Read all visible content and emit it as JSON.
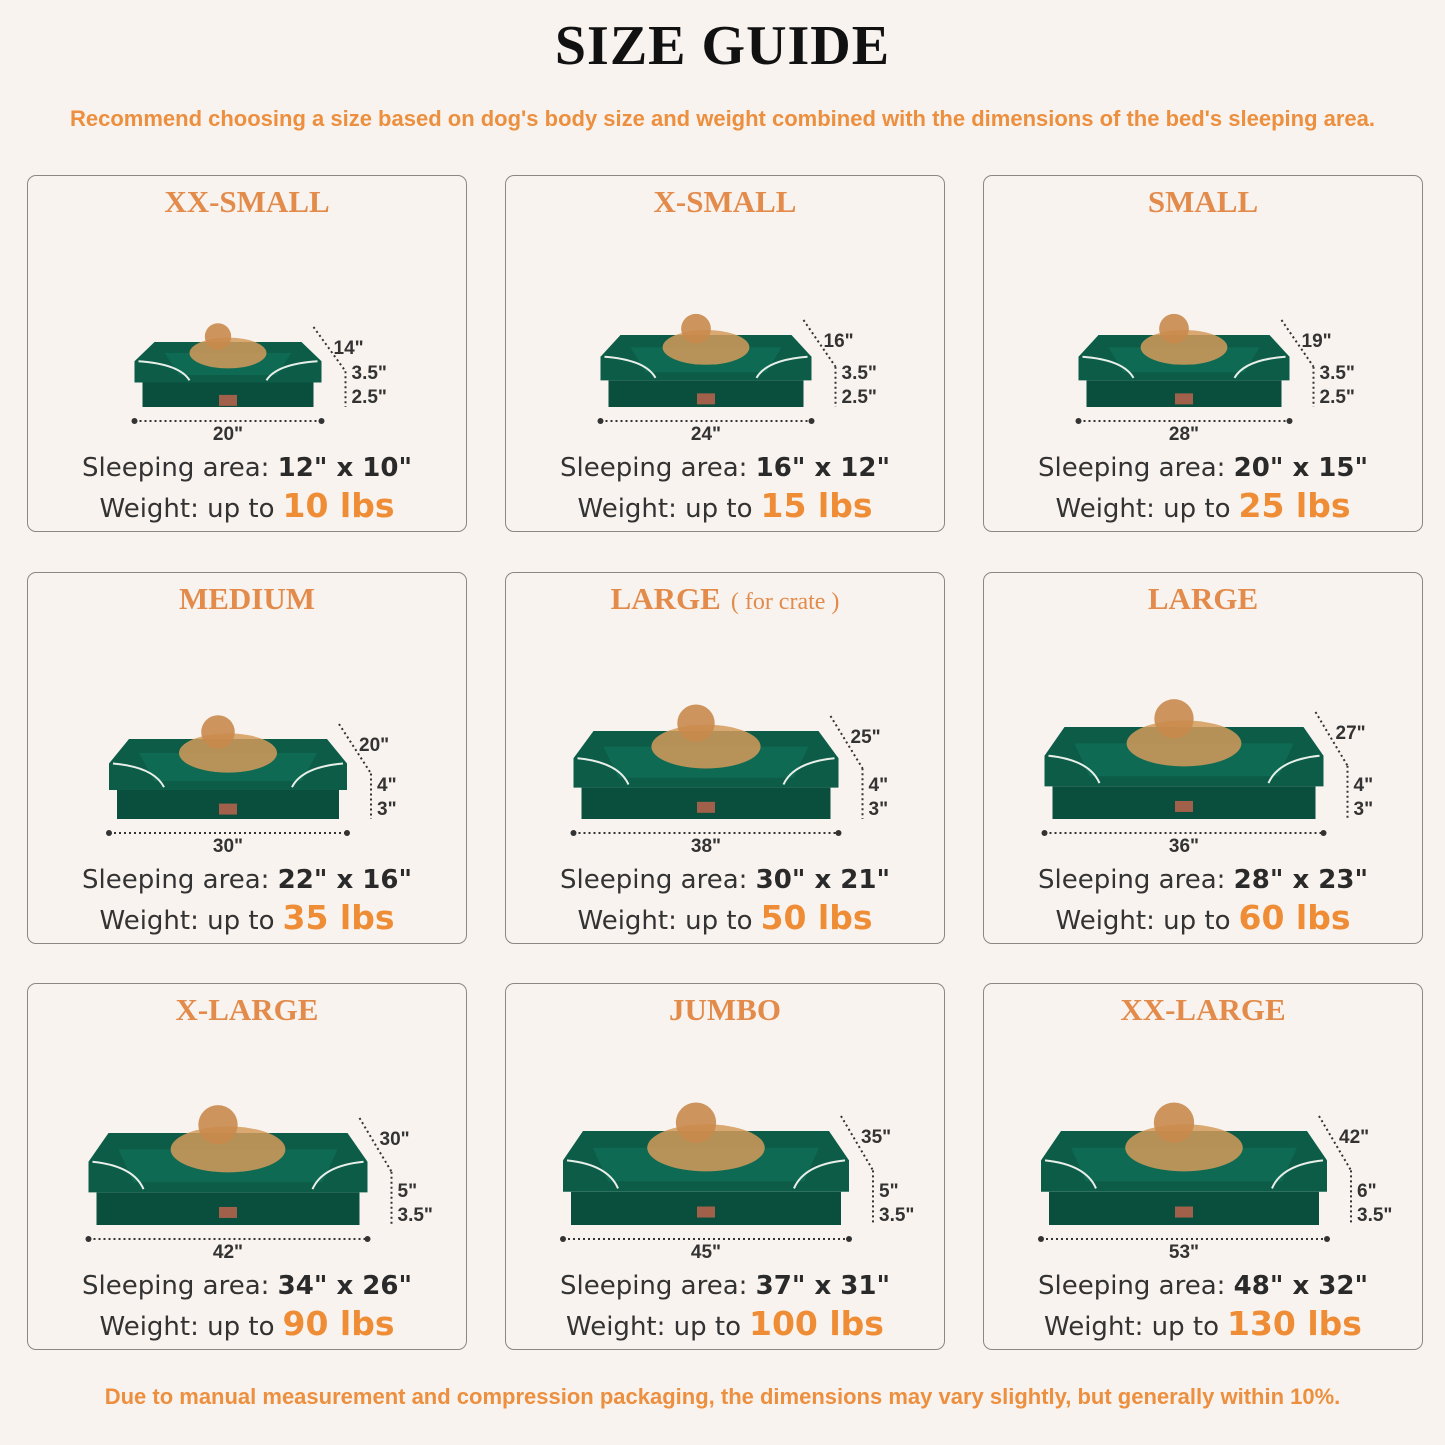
{
  "header": {
    "title": "SIZE GUIDE",
    "subtitle": "Recommend choosing a size based on dog's body size and weight combined with the dimensions of the bed's sleeping area."
  },
  "footer": "Due to manual measurement and compression packaging, the dimensions may vary slightly, but generally within 10%.",
  "colors": {
    "accent": "#ec8f3e",
    "title_orange": "#e28b4b",
    "bed_green": "#0b5a46",
    "background": "#f9f3ef"
  },
  "labels": {
    "sleeping_area": "Sleeping area:",
    "weight": "Weight: up to"
  },
  "sizes": [
    {
      "name": "XX-SMALL",
      "note": "",
      "animal": "cat",
      "depth": "14\"",
      "bolster": "3.5\"",
      "base": "2.5\"",
      "width": "20\"",
      "sleeping_area": "12\" x 10\"",
      "weight": "10 lbs"
    },
    {
      "name": "X-SMALL",
      "note": "",
      "animal": "dog",
      "depth": "16\"",
      "bolster": "3.5\"",
      "base": "2.5\"",
      "width": "24\"",
      "sleeping_area": "16\" x 12\"",
      "weight": "15 lbs"
    },
    {
      "name": "SMALL",
      "note": "",
      "animal": "dog",
      "depth": "19\"",
      "bolster": "3.5\"",
      "base": "2.5\"",
      "width": "28\"",
      "sleeping_area": "20\" x 15\"",
      "weight": "25 lbs"
    },
    {
      "name": "MEDIUM",
      "note": "",
      "animal": "dog",
      "depth": "20\"",
      "bolster": "4\"",
      "base": "3\"",
      "width": "30\"",
      "sleeping_area": "22\" x 16\"",
      "weight": "35 lbs"
    },
    {
      "name": "LARGE",
      "note": "( for crate )",
      "animal": "dog",
      "depth": "25\"",
      "bolster": "4\"",
      "base": "3\"",
      "width": "38\"",
      "sleeping_area": "30\" x 21\"",
      "weight": "50 lbs"
    },
    {
      "name": "LARGE",
      "note": "",
      "animal": "dog",
      "depth": "27\"",
      "bolster": "4\"",
      "base": "3\"",
      "width": "36\"",
      "sleeping_area": "28\" x 23\"",
      "weight": "60 lbs"
    },
    {
      "name": "X-LARGE",
      "note": "",
      "animal": "dog",
      "depth": "30\"",
      "bolster": "5\"",
      "base": "3.5\"",
      "width": "42\"",
      "sleeping_area": "34\" x 26\"",
      "weight": "90 lbs"
    },
    {
      "name": "JUMBO",
      "note": "",
      "animal": "dog",
      "depth": "35\"",
      "bolster": "5\"",
      "base": "3.5\"",
      "width": "45\"",
      "sleeping_area": "37\" x 31\"",
      "weight": "100 lbs"
    },
    {
      "name": "XX-LARGE",
      "note": "",
      "animal": "dog",
      "depth": "42\"",
      "bolster": "6\"",
      "base": "3.5\"",
      "width": "53\"",
      "sleeping_area": "48\" x 32\"",
      "weight": "130 lbs"
    }
  ]
}
